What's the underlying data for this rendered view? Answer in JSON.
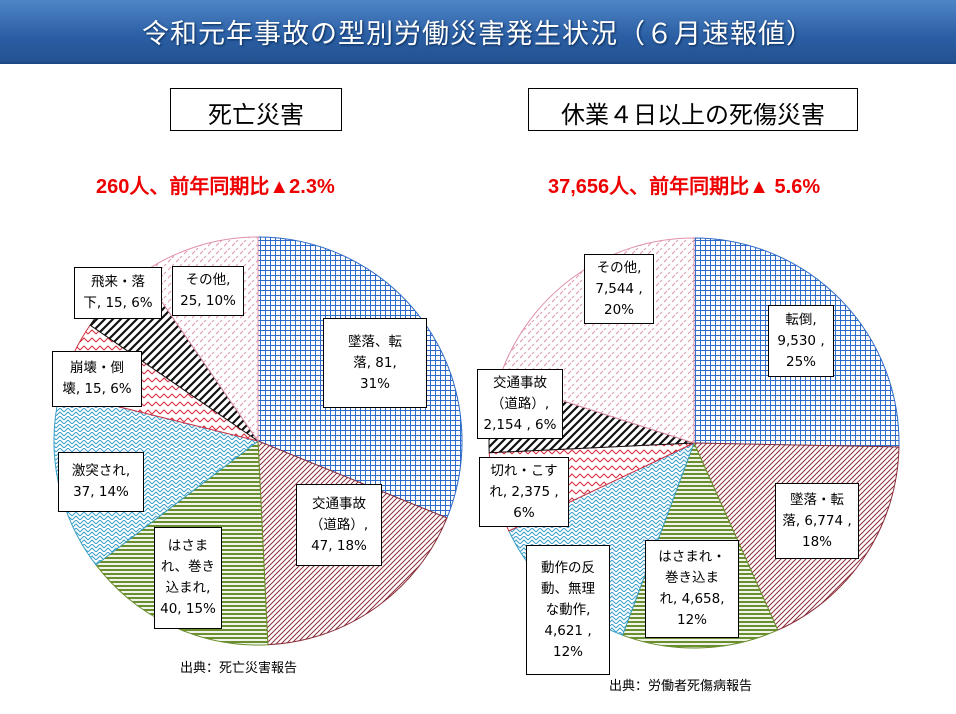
{
  "banner": {
    "title": "令和元年事故の型別労働災害発生状況（６月速報値）"
  },
  "chart_data": [
    {
      "type": "pie",
      "title": "死亡災害",
      "subtitle": "260人、前年同期比▲2.3%",
      "source": "出典：死亡災害報告",
      "slices": [
        {
          "label": "墜落、転\n落, 81,\n31%",
          "name": "墜落、転落",
          "value": 81,
          "percent": 31,
          "color": "#2f6bc8"
        },
        {
          "label": "交通事故\n（道路）,\n47, 18%",
          "name": "交通事故（道路）",
          "value": 47,
          "percent": 18,
          "color": "#8b2e3a"
        },
        {
          "label": "はさま\nれ、巻き\n込まれ,\n40, 15%",
          "name": "はさまれ、巻き込まれ",
          "value": 40,
          "percent": 15,
          "color": "#6b8e2e"
        },
        {
          "label": "激突され,\n37, 14%",
          "name": "激突され",
          "value": 37,
          "percent": 14,
          "color": "#3aa0c8"
        },
        {
          "label": "崩壊・倒\n壊, 15, 6%",
          "name": "崩壊・倒壊",
          "value": 15,
          "percent": 6,
          "color": "#d42a3c"
        },
        {
          "label": "飛来・落\n下, 15, 6%",
          "name": "飛来・落下",
          "value": 15,
          "percent": 6,
          "color": "#111111"
        },
        {
          "label": "その他,\n25, 10%",
          "name": "その他",
          "value": 25,
          "percent": 10,
          "color": "#e090a8"
        }
      ]
    },
    {
      "type": "pie",
      "title": "休業４日以上の死傷災害",
      "subtitle": "37,656人、前年同期比▲ 5.6%",
      "source": "出典：労働者死傷病報告",
      "slices": [
        {
          "label": "転倒,\n9,530 ,\n25%",
          "name": "転倒",
          "value": 9530,
          "percent": 25,
          "color": "#2f6bc8"
        },
        {
          "label": "墜落・転\n落, 6,774 ,\n18%",
          "name": "墜落・転落",
          "value": 6774,
          "percent": 18,
          "color": "#8b2e3a"
        },
        {
          "label": "はさまれ・\n巻き込ま\nれ, 4,658,\n12%",
          "name": "はさまれ・巻き込まれ",
          "value": 4658,
          "percent": 12,
          "color": "#6b8e2e"
        },
        {
          "label": "動作の反\n動、無理\nな動作,\n4,621 ,\n12%",
          "name": "動作の反動、無理な動作",
          "value": 4621,
          "percent": 12,
          "color": "#3aa0c8"
        },
        {
          "label": "切れ・こす\nれ, 2,375 ,\n6%",
          "name": "切れ・こすれ",
          "value": 2375,
          "percent": 6,
          "color": "#d42a3c"
        },
        {
          "label": "交通事故\n（道路）,\n2,154 , 6%",
          "name": "交通事故（道路）",
          "value": 2154,
          "percent": 6,
          "color": "#111111"
        },
        {
          "label": "その他,\n7,544 ,\n20%",
          "name": "その他",
          "value": 7544,
          "percent": 20,
          "color": "#e090a8"
        }
      ]
    }
  ]
}
